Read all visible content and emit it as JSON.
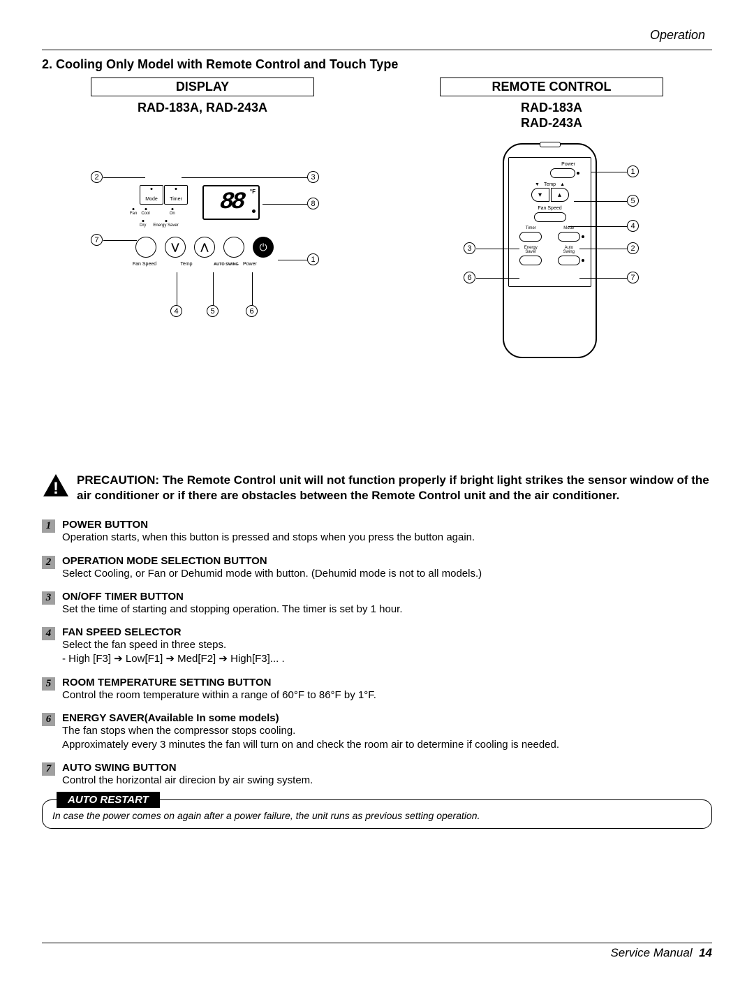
{
  "header": {
    "section": "Operation"
  },
  "title": "2. Cooling Only Model with Remote Control and Touch Type",
  "display": {
    "box_label": "DISPLAY",
    "model": "RAD-183A, RAD-243A",
    "lcd_value": "88",
    "f_mark": "°F",
    "small_btns": {
      "mode": "Mode",
      "timer": "Timer"
    },
    "lights_row1": {
      "fan": "Fan",
      "cool": "Cool",
      "on": "On"
    },
    "lights_row2": {
      "dry": "Dry",
      "energy": "Energy Saver"
    },
    "labels": {
      "fan_speed": "Fan Speed",
      "temp": "Temp",
      "auto_swing": "AUTO SWING",
      "power": "Power"
    },
    "callouts": {
      "c1": "1",
      "c2": "2",
      "c3": "3",
      "c4": "4",
      "c5": "5",
      "c6": "6",
      "c7": "7",
      "c8": "8"
    }
  },
  "remote": {
    "box_label": "REMOTE CONTROL",
    "model1": "RAD-183A",
    "model2": "RAD-243A",
    "labels": {
      "power": "Power",
      "temp": "Temp",
      "fan_speed": "Fan Speed",
      "timer": "Timer",
      "mode": "Mode",
      "energy_saver": "Energy",
      "energy_saver2": "Saver",
      "auto_swing": "Auto",
      "auto_swing2": "Swing"
    },
    "temp_down": "▼",
    "temp_up": "▲",
    "callouts": {
      "c1": "1",
      "c2": "2",
      "c3": "3",
      "c4": "4",
      "c5": "5",
      "c6": "6",
      "c7": "7"
    }
  },
  "precaution": "PRECAUTION: The Remote Control unit will not function properly if bright light strikes the sensor window of the air conditioner or if there are obstacles between the Remote Control unit and the air conditioner.",
  "items": [
    {
      "n": "1",
      "title": "POWER BUTTON",
      "desc": "Operation starts, when this button is pressed and stops when you press the button again."
    },
    {
      "n": "2",
      "title": "OPERATION MODE SELECTION BUTTON",
      "desc": "Select Cooling, or Fan or Dehumid mode with button. (Dehumid mode is not to all models.)"
    },
    {
      "n": "3",
      "title": "ON/OFF TIMER BUTTON",
      "desc": "Set the time of starting and stopping operation. The timer is set by 1 hour."
    },
    {
      "n": "4",
      "title": "FAN SPEED SELECTOR",
      "desc": "Select the fan speed in three steps.\n- High [F3] ➔ Low[F1] ➔ Med[F2] ➔ High[F3]... ."
    },
    {
      "n": "5",
      "title": "ROOM TEMPERATURE SETTING BUTTON",
      "desc": "Control the room temperature within a range of 60°F to 86°F by 1°F."
    },
    {
      "n": "6",
      "title": "ENERGY SAVER(Available In some models)",
      "desc": "The fan stops when the compressor stops cooling.\nApproximately every 3 minutes the fan will turn on and check the room air to determine if cooling is needed."
    },
    {
      "n": "7",
      "title": "AUTO SWING BUTTON",
      "desc": "Control the horizontal air direcion by air swing system."
    }
  ],
  "auto_restart": {
    "tab": "AUTO RESTART",
    "body": "In case the power comes on again after a power failure, the unit runs as previous setting operation."
  },
  "footer": {
    "sm": "Service Manual",
    "page": "14"
  }
}
